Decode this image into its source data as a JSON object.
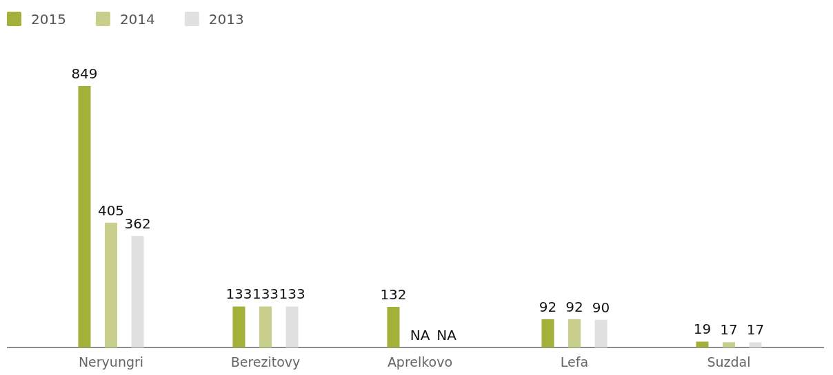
{
  "chart_data": {
    "type": "bar",
    "legend": "top left",
    "categories": [
      "Neryungri",
      "Berezitovy",
      "Aprelkovo",
      "Lefa",
      "Suzdal"
    ],
    "series": [
      {
        "name": "2015",
        "color": "#a3b13b",
        "values": [
          849,
          133,
          132,
          92,
          19
        ],
        "value_labels": [
          "849",
          "133",
          "132",
          "92",
          "19"
        ]
      },
      {
        "name": "2014",
        "color": "#c8ce8c",
        "values": [
          405,
          133,
          null,
          92,
          17
        ],
        "value_labels": [
          "405",
          "133",
          "NA",
          "92",
          "17"
        ]
      },
      {
        "name": "2013",
        "color": "#e0e1e0",
        "values": [
          362,
          133,
          null,
          90,
          17
        ],
        "value_labels": [
          "362",
          "133",
          "NA",
          "90",
          "17"
        ]
      }
    ]
  }
}
